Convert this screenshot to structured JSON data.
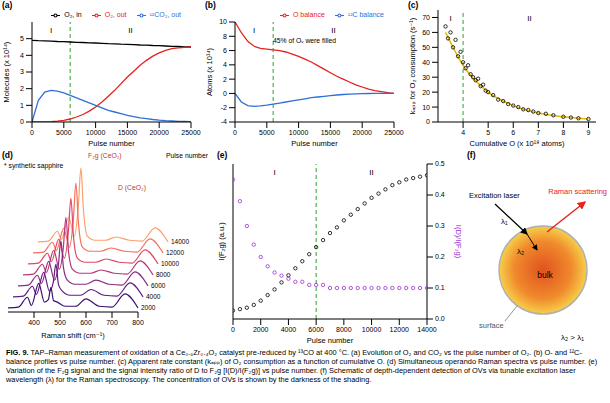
{
  "chart_data": [
    {
      "panel": "(a)",
      "type": "line",
      "x_label": "Pulse number",
      "y_label": "Molecules (x 10¹⁴)",
      "x": [
        0,
        1000,
        2000,
        3000,
        4000,
        5000,
        6000,
        7000,
        8000,
        9000,
        10000,
        11000,
        12000,
        13000,
        14000,
        15000,
        16000,
        17000,
        18000,
        19000,
        20000,
        21000,
        22000,
        23000,
        24000,
        25000
      ],
      "series": [
        {
          "name": "O₂, in",
          "color": "#000000",
          "values": [
            4.9,
            4.88,
            4.87,
            4.85,
            4.83,
            4.82,
            4.8,
            4.78,
            4.77,
            4.75,
            4.74,
            4.72,
            4.7,
            4.69,
            4.67,
            4.66,
            4.64,
            4.62,
            4.61,
            4.59,
            4.58,
            4.56,
            4.54,
            4.53,
            4.51,
            4.5
          ]
        },
        {
          "name": "O₂, out",
          "color": "#e8201e",
          "values": [
            0,
            0,
            0,
            0.02,
            0.05,
            0.1,
            0.18,
            0.3,
            0.45,
            0.65,
            0.9,
            1.2,
            1.55,
            1.9,
            2.3,
            2.7,
            3.05,
            3.4,
            3.7,
            3.95,
            4.15,
            4.3,
            4.4,
            4.45,
            4.48,
            4.5
          ]
        },
        {
          "name": "¹²CO₂, out",
          "color": "#2f6fd6",
          "values": [
            0,
            1.3,
            1.8,
            1.9,
            1.85,
            1.75,
            1.6,
            1.45,
            1.3,
            1.15,
            1.0,
            0.85,
            0.7,
            0.6,
            0.5,
            0.4,
            0.32,
            0.25,
            0.2,
            0.15,
            0.11,
            0.08,
            0.06,
            0.04,
            0.03,
            0.02
          ]
        }
      ],
      "xlim": [
        0,
        25000
      ],
      "xticks": [
        0,
        5000,
        10000,
        15000,
        20000,
        25000
      ],
      "ylim": [
        0,
        6
      ],
      "yticks": [
        0,
        1,
        2,
        3,
        4,
        5
      ],
      "legend": "top",
      "regions": [
        "I",
        "II"
      ],
      "divider_x": 6000
    },
    {
      "panel": "(b)",
      "type": "line",
      "x_label": "Pulse number",
      "y_label": "Atoms (x 10¹⁴)",
      "x": [
        0,
        1000,
        2000,
        3000,
        4000,
        5000,
        6000,
        7000,
        8000,
        9000,
        10000,
        11000,
        12000,
        13000,
        14000,
        15000,
        16000,
        17000,
        18000,
        19000,
        20000,
        21000,
        22000,
        23000,
        24000,
        25000
      ],
      "series": [
        {
          "name": "O balance",
          "color": "#e8201e",
          "values": [
            10,
            8.5,
            7.3,
            6.6,
            6.3,
            6.2,
            6.1,
            6.0,
            5.8,
            5.5,
            5.2,
            4.8,
            4.4,
            3.9,
            3.4,
            2.9,
            2.4,
            2.0,
            1.6,
            1.2,
            0.9,
            0.6,
            0.4,
            0.25,
            0.1,
            0
          ]
        },
        {
          "name": "¹²C balance",
          "color": "#2f6fd6",
          "values": [
            0,
            -1.2,
            -1.7,
            -1.8,
            -1.75,
            -1.65,
            -1.5,
            -1.35,
            -1.2,
            -1.05,
            -0.9,
            -0.75,
            -0.6,
            -0.5,
            -0.4,
            -0.3,
            -0.22,
            -0.15,
            -0.1,
            -0.06,
            -0.03,
            -0.01,
            0,
            0,
            0,
            0
          ]
        }
      ],
      "xlim": [
        0,
        25000
      ],
      "xticks": [
        0,
        5000,
        10000,
        15000,
        20000,
        25000
      ],
      "ylim": [
        -4,
        10
      ],
      "yticks": [
        -4,
        -2,
        0,
        2,
        4,
        6,
        8,
        10
      ],
      "legend": "top",
      "regions": [
        "I",
        "II"
      ],
      "divider_x": 6000,
      "annotation": "45% of Oᵥ were filled"
    },
    {
      "panel": "(c)",
      "type": "scatter",
      "x_label": "Cumulative O (x 10¹⁸ atoms)",
      "y_label": "kₐₚₚ for O₂ consumption (s⁻¹)",
      "series": [
        {
          "type": "scatter",
          "color": "#000000",
          "marker": "circle",
          "x": [
            3.3,
            3.4,
            3.5,
            3.6,
            3.7,
            3.8,
            3.9,
            4.0,
            4.1,
            4.2,
            4.3,
            4.4,
            4.5,
            4.6,
            4.7,
            4.8,
            4.9,
            5.0,
            5.2,
            5.4,
            5.6,
            5.8,
            6.0,
            6.2,
            6.4,
            6.6,
            6.8,
            7.0,
            7.3,
            7.6,
            8.0,
            8.3,
            8.6,
            9.0
          ],
          "values": [
            64,
            56,
            60,
            50,
            55,
            44,
            47,
            40,
            36,
            38,
            32,
            30,
            28,
            29,
            24,
            25,
            21,
            20,
            18,
            15,
            14,
            12,
            11,
            10,
            8.5,
            8,
            7,
            6,
            5.5,
            4.5,
            3.5,
            3,
            2.5,
            2
          ]
        },
        {
          "type": "line",
          "color": "#e6b800",
          "x": [
            3.3,
            4,
            5,
            6,
            7,
            8,
            9
          ],
          "values": [
            60,
            38,
            20,
            11,
            6,
            3.5,
            2
          ]
        }
      ],
      "xlim": [
        3,
        9.3
      ],
      "xticks": [
        4,
        5,
        6,
        7,
        8,
        9
      ],
      "ylim": [
        0,
        75
      ],
      "yticks": [
        0,
        10,
        20,
        30,
        40,
        50,
        60,
        70
      ],
      "regions": [
        "I",
        "II"
      ],
      "divider_x": 4
    },
    {
      "panel": "(d)",
      "type": "line",
      "x_label": "Raman shift (cm⁻¹)",
      "z_label": "Pulse number",
      "x": [
        300,
        340,
        375,
        390,
        418,
        440,
        455,
        465,
        475,
        490,
        520,
        560,
        600,
        650,
        700,
        750,
        800
      ],
      "series": [
        {
          "name": "2000",
          "color": "#3b0f70",
          "values": [
            0.05,
            0.06,
            0.18,
            0.08,
            0.35,
            0.12,
            0.15,
            0.3,
            0.14,
            0.12,
            0.07,
            0.07,
            0.16,
            0.07,
            0.06,
            0.22,
            0.05
          ]
        },
        {
          "name": "4000",
          "color": "#641a80",
          "values": [
            0.05,
            0.06,
            0.18,
            0.08,
            0.35,
            0.12,
            0.23,
            0.45,
            0.2,
            0.12,
            0.07,
            0.07,
            0.14,
            0.07,
            0.06,
            0.22,
            0.05
          ]
        },
        {
          "name": "6000",
          "color": "#8c2981",
          "values": [
            0.05,
            0.06,
            0.18,
            0.08,
            0.35,
            0.12,
            0.3,
            0.6,
            0.27,
            0.12,
            0.07,
            0.07,
            0.12,
            0.07,
            0.06,
            0.22,
            0.05
          ]
        },
        {
          "name": "8000",
          "color": "#b73779",
          "values": [
            0.05,
            0.06,
            0.18,
            0.08,
            0.35,
            0.12,
            0.38,
            0.75,
            0.34,
            0.12,
            0.07,
            0.07,
            0.11,
            0.07,
            0.06,
            0.22,
            0.05
          ]
        },
        {
          "name": "10000",
          "color": "#de4968",
          "values": [
            0.05,
            0.06,
            0.18,
            0.08,
            0.35,
            0.12,
            0.43,
            0.85,
            0.38,
            0.12,
            0.07,
            0.07,
            0.11,
            0.07,
            0.06,
            0.22,
            0.05
          ]
        },
        {
          "name": "12000",
          "color": "#f7705c",
          "values": [
            0.05,
            0.06,
            0.18,
            0.08,
            0.35,
            0.12,
            0.45,
            0.9,
            0.41,
            0.12,
            0.07,
            0.07,
            0.11,
            0.07,
            0.06,
            0.22,
            0.05
          ]
        },
        {
          "name": "14000",
          "color": "#fe9f6d",
          "values": [
            0.05,
            0.06,
            0.18,
            0.08,
            0.35,
            0.12,
            0.48,
            0.95,
            0.43,
            0.12,
            0.07,
            0.07,
            0.11,
            0.07,
            0.06,
            0.22,
            0.05
          ]
        }
      ],
      "xlim": [
        300,
        800
      ],
      "xticks": [
        400,
        500,
        600,
        700,
        800
      ],
      "ylim": [
        0,
        1
      ],
      "tick_labels": "x",
      "annotations": [
        "F₂g (CeO₂)",
        "D (CeO₂)",
        "* synthetic sapphire"
      ]
    },
    {
      "panel": "(e)",
      "type": "scatter",
      "x_label": "Pulse number",
      "y_label": "I(F₂g) (a.u.)",
      "y2_label": "I(D)/I(F₂g)",
      "x": [
        0,
        500,
        1000,
        1500,
        2000,
        2500,
        3000,
        3500,
        4000,
        4500,
        5000,
        5500,
        6000,
        6500,
        7000,
        7500,
        8000,
        8500,
        9000,
        9500,
        10000,
        10500,
        11000,
        11500,
        12000,
        12500,
        13000,
        13500,
        14000
      ],
      "series": [
        {
          "color": "#000000",
          "marker": "circle",
          "values": [
            0.06,
            0.07,
            0.08,
            0.1,
            0.13,
            0.17,
            0.21,
            0.26,
            0.31,
            0.36,
            0.41,
            0.46,
            0.51,
            0.56,
            0.61,
            0.65,
            0.7,
            0.74,
            0.78,
            0.82,
            0.86,
            0.89,
            0.92,
            0.95,
            0.97,
            0.99,
            1.0,
            1.01,
            1.02
          ]
        },
        {
          "color": "#9b30d0",
          "marker": "circle",
          "axis": "y2",
          "values": [
            0.45,
            0.38,
            0.3,
            0.24,
            0.2,
            0.17,
            0.15,
            0.14,
            0.13,
            0.12,
            0.12,
            0.11,
            0.11,
            0.11,
            0.1,
            0.1,
            0.1,
            0.1,
            0.1,
            0.1,
            0.1,
            0.1,
            0.1,
            0.1,
            0.1,
            0.1,
            0.1,
            0.1,
            0.1
          ]
        }
      ],
      "xlim": [
        0,
        14000
      ],
      "xticks": [
        0,
        2000,
        4000,
        6000,
        8000,
        10000,
        12000,
        14000
      ],
      "ylim": [
        0,
        1.1
      ],
      "y2lim": [
        0,
        0.5
      ],
      "y2ticks": [
        {
          "value": 0,
          "label": "0.0"
        },
        0.1,
        0.2,
        0.3,
        0.4,
        0.5
      ],
      "regions": [
        "I",
        "II"
      ],
      "divider_x": 6000
    }
  ],
  "schematic": {
    "panel": "(f)",
    "excitation": "Excitation laser",
    "scattering": "Raman scattering",
    "lambda1": "λ₁",
    "lambda2": "λ₂",
    "core": "bulk",
    "shell": "surface",
    "relation": "λ₂ > λ₁"
  },
  "caption": {
    "label": "FIG. 9.",
    "text": "TAP–Raman measurement of oxidation of a Ce₀.₆Zr₀.₄O₂ catalyst pre-reduced by ¹³CO at 400 °C. (a) Evolution of O₂ and CO₂ vs the pulse number of O₂. (b) O- and ¹²C-balance profiles vs pulse number. (c) Apparent rate constant (kₐₚₚ) of O₂ consumption as a function of cumulative O. (d) Simultaneous operando Raman spectra vs pulse number. (e) Variation of the F₂g signal and the signal intensity ratio of D to F₂g [I(D)/I(F₂g)] vs pulse number. (f) Schematic of depth-dependent detection of OVs via tunable excitation laser wavelength (λ) for the Raman spectroscopy. The concentration of OVs is shown by the darkness of the shading."
  }
}
